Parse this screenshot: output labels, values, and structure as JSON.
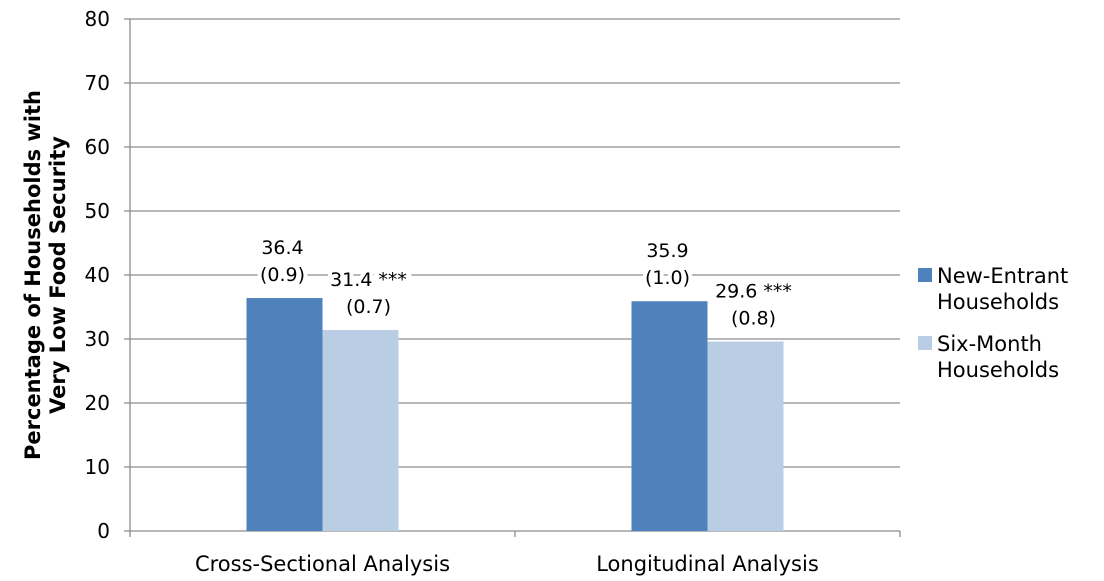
{
  "chart_data": {
    "type": "bar",
    "title": "",
    "xlabel": "",
    "ylabel_lines": [
      "Percentage of Households with",
      "Very Low Food Security"
    ],
    "ylim": [
      0,
      80
    ],
    "yticks": [
      0,
      10,
      20,
      30,
      40,
      50,
      60,
      70,
      80
    ],
    "grid": true,
    "legend_position": "right",
    "categories": [
      "Cross-Sectional Analysis",
      "Longitudinal Analysis"
    ],
    "series": [
      {
        "name_lines": [
          "New-Entrant",
          "Households"
        ],
        "color": "#4f81bd",
        "values": [
          36.4,
          35.9
        ],
        "labels": [
          {
            "value": "36.4",
            "se": "(0.9)"
          },
          {
            "value": "35.9",
            "se": "(1.0)"
          }
        ]
      },
      {
        "name_lines": [
          "Six-Month",
          "Households"
        ],
        "color": "#b9cde5",
        "values": [
          31.4,
          29.6
        ],
        "labels": [
          {
            "value": "31.4 ***",
            "se": "(0.7)"
          },
          {
            "value": "29.6 ***",
            "se": "(0.8)"
          }
        ]
      }
    ]
  }
}
